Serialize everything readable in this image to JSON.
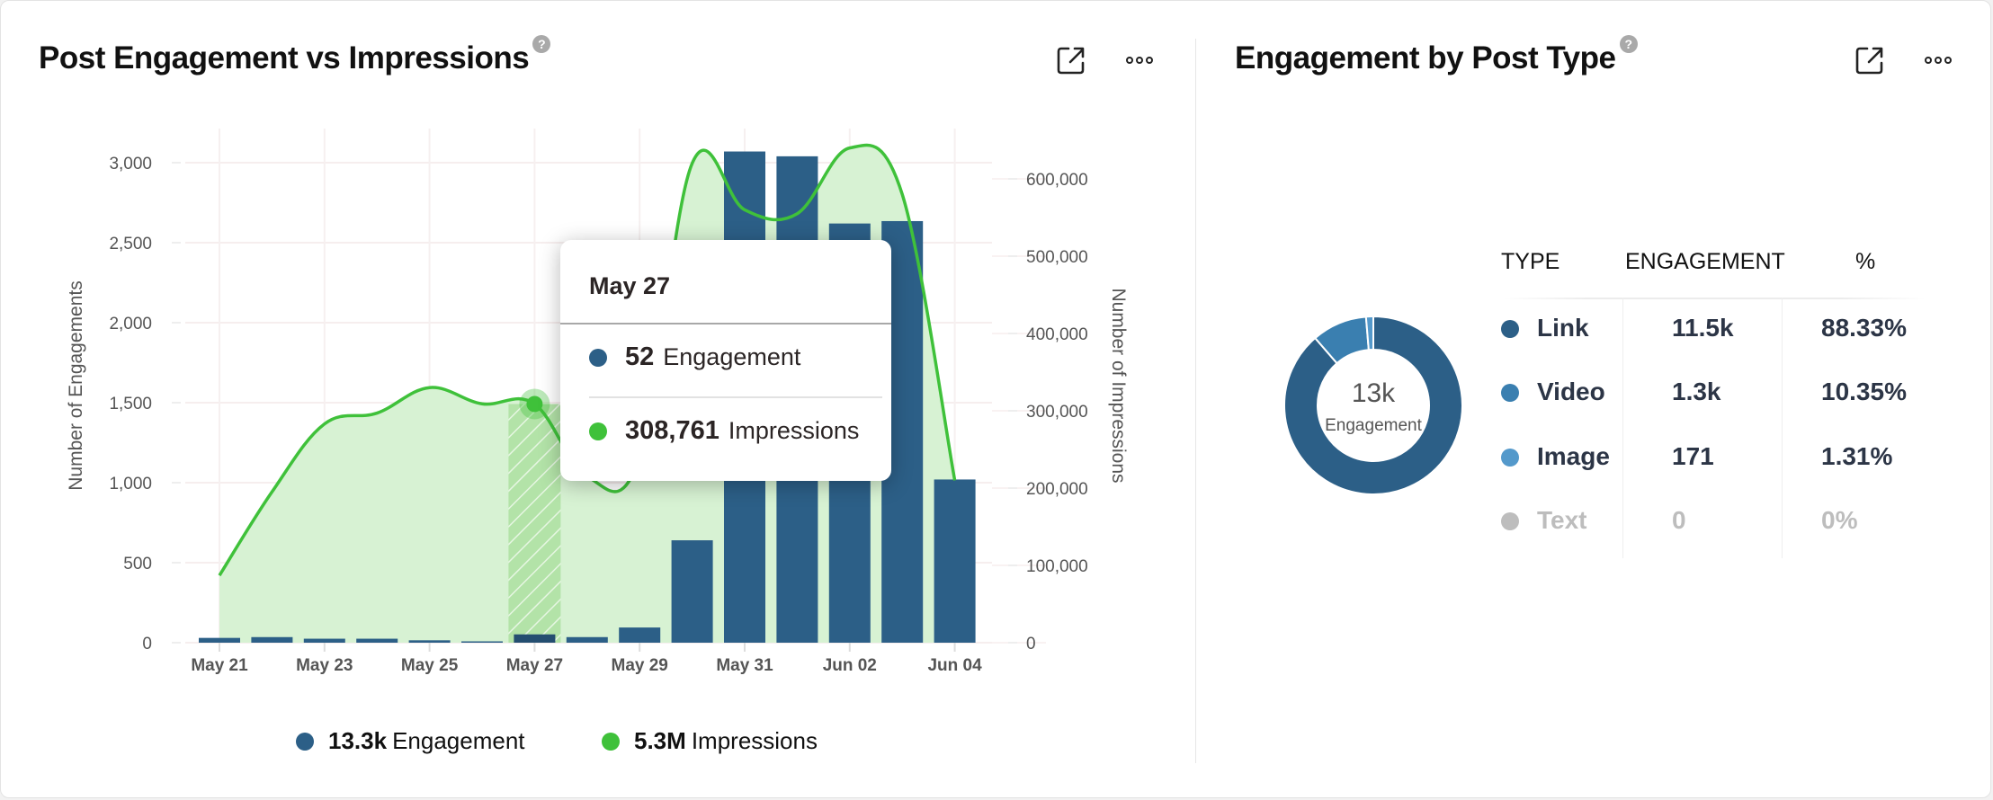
{
  "left_panel": {
    "title": "Post Engagement vs Impressions",
    "help_icon": "?",
    "actions": [
      "open-external",
      "more-options"
    ]
  },
  "right_panel": {
    "title": "Engagement by Post Type",
    "help_icon": "?",
    "actions": [
      "open-external",
      "more-options"
    ]
  },
  "tooltip": {
    "date": "May 27",
    "rows": [
      {
        "value": "52",
        "label": "Engagement",
        "color": "#2c5f87"
      },
      {
        "value": "308,761",
        "label": "Impressions",
        "color": "#3fc13a"
      }
    ]
  },
  "legend": [
    {
      "value": "13.3k",
      "label": "Engagement",
      "color": "#2c5f87"
    },
    {
      "value": "5.3M",
      "label": "Impressions",
      "color": "#3fc13a"
    }
  ],
  "chart_data": [
    {
      "type": "bar",
      "title": "Post Engagement vs Impressions",
      "categories": [
        "May 21",
        "May 22",
        "May 23",
        "May 24",
        "May 25",
        "May 26",
        "May 27",
        "May 28",
        "May 29",
        "May 30",
        "May 31",
        "Jun 01",
        "Jun 02",
        "Jun 03",
        "Jun 04"
      ],
      "x_tick_labels": [
        "May 21",
        "May 23",
        "May 25",
        "May 27",
        "May 29",
        "May 31",
        "Jun 02",
        "Jun 04"
      ],
      "series": [
        {
          "name": "Engagement",
          "type": "bar",
          "axis": "left",
          "color": "#2c5f87",
          "values": [
            30,
            35,
            25,
            25,
            15,
            3,
            52,
            35,
            95,
            640,
            3070,
            3040,
            2620,
            2635,
            1020
          ]
        },
        {
          "name": "Impressions",
          "type": "area",
          "axis": "right",
          "color": "#3fc13a",
          "values": [
            87000,
            195000,
            283000,
            297000,
            330000,
            309000,
            308761,
            215000,
            240000,
            620000,
            560000,
            555000,
            640000,
            580000,
            210000
          ]
        }
      ],
      "ylabel": "Number of Engagements",
      "ylabel_right": "Number of Impressions",
      "ylim": [
        0,
        3200
      ],
      "yticks": [
        0,
        500,
        1000,
        1500,
        2000,
        2500,
        3000
      ],
      "ytick_labels": [
        "0",
        "500",
        "1,000",
        "1,500",
        "2,000",
        "2,500",
        "3,000"
      ],
      "ylim_right": [
        0,
        640000
      ],
      "yticks_right": [
        0,
        100000,
        200000,
        300000,
        400000,
        500000,
        600000
      ],
      "ytick_labels_right": [
        "0",
        "100,000",
        "200,000",
        "300,000",
        "400,000",
        "500,000",
        "600,000"
      ],
      "highlighted_category": "May 27",
      "grid": true,
      "legend": "bottom"
    },
    {
      "type": "pie",
      "title": "Engagement by Post Type",
      "center_value": "13k",
      "center_label": "Engagement",
      "categories": [
        "Link",
        "Video",
        "Image",
        "Text"
      ],
      "values": [
        11500,
        1300,
        171,
        0
      ],
      "percentages": [
        88.33,
        10.35,
        1.31,
        0
      ],
      "colors": [
        "#2c5f87",
        "#3a7fb0",
        "#5499cb",
        "#bdbdbd"
      ]
    }
  ],
  "post_type_table": {
    "headers": [
      "TYPE",
      "ENGAGEMENT",
      "%"
    ],
    "rows": [
      {
        "type": "Link",
        "engagement": "11.5k",
        "percent": "88.33%",
        "color": "#2c5f87",
        "muted": false
      },
      {
        "type": "Video",
        "engagement": "1.3k",
        "percent": "10.35%",
        "color": "#3a7fb0",
        "muted": false
      },
      {
        "type": "Image",
        "engagement": "171",
        "percent": "1.31%",
        "color": "#5499cb",
        "muted": false
      },
      {
        "type": "Text",
        "engagement": "0",
        "percent": "0%",
        "color": "#bdbdbd",
        "muted": true
      }
    ]
  }
}
